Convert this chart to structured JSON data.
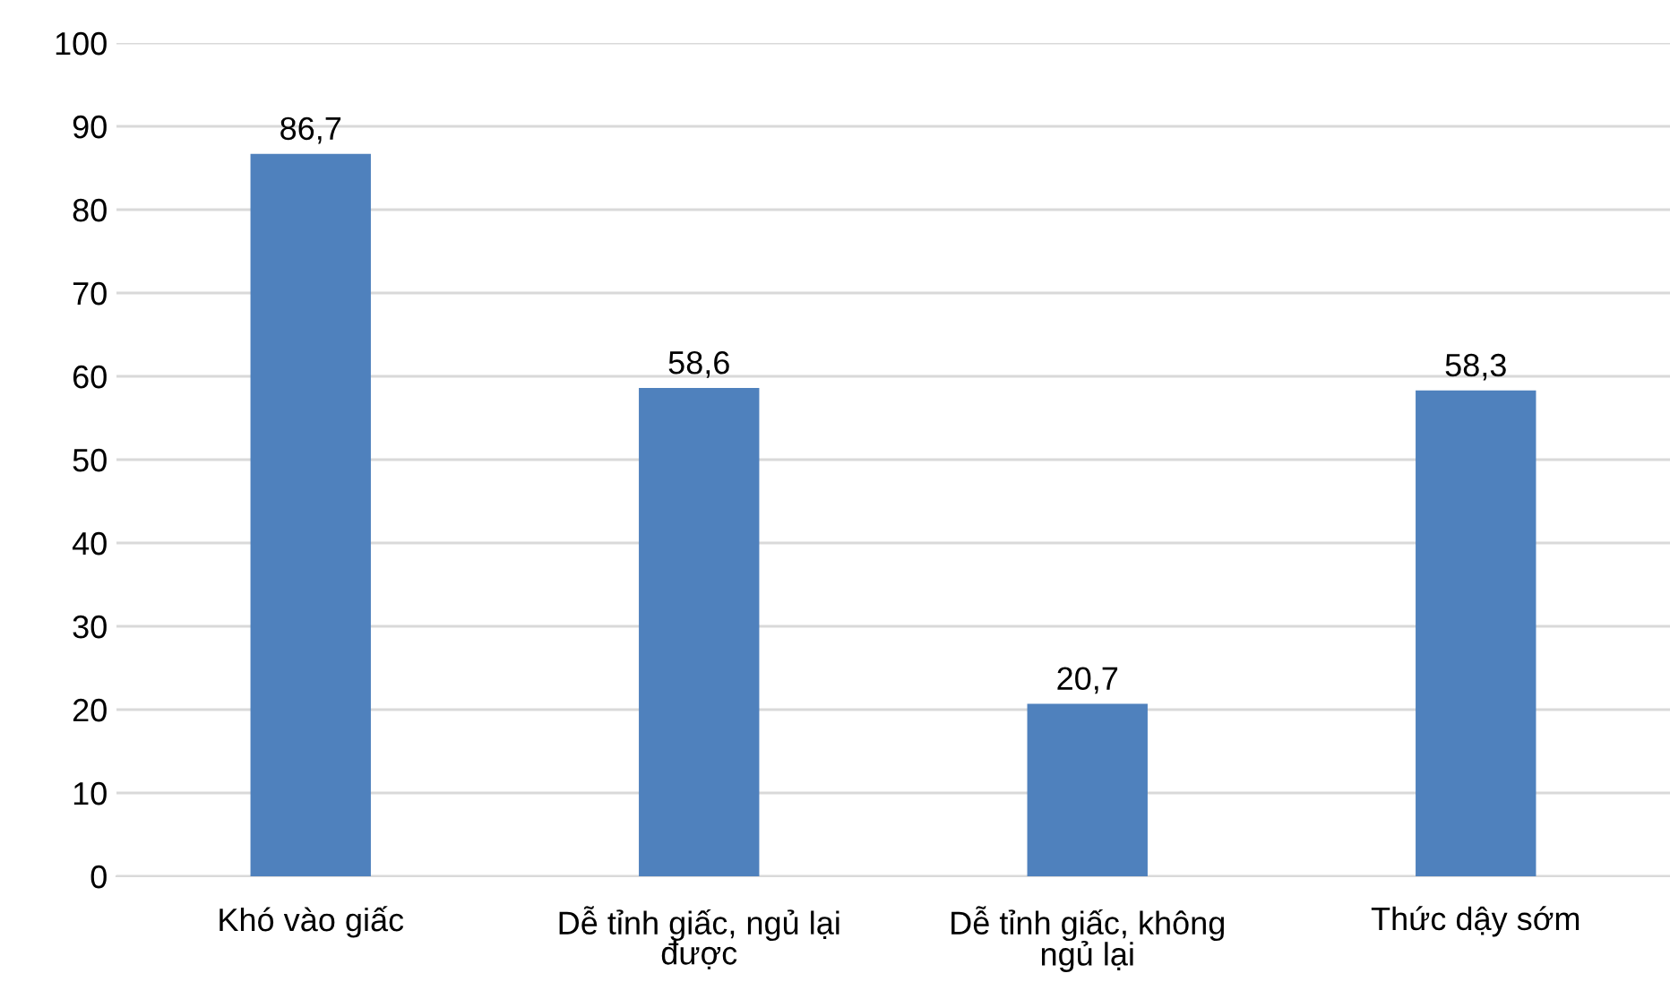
{
  "chart_data": {
    "type": "bar",
    "categories": [
      "Khó vào giấc",
      "Dễ tỉnh giấc, ngủ lại\nđược",
      "Dễ tỉnh giấc, không\nngủ lại",
      "Thức dậy sớm"
    ],
    "values": [
      86.7,
      58.6,
      20.7,
      58.3
    ],
    "value_labels": [
      "86,7",
      "58,6",
      "20,7",
      "58,3"
    ],
    "color": "#4f81bd",
    "ylim": [
      0,
      100
    ],
    "yticks": [
      0,
      10,
      20,
      30,
      40,
      50,
      60,
      70,
      80,
      90,
      100
    ],
    "grid": "y",
    "legend": false
  }
}
